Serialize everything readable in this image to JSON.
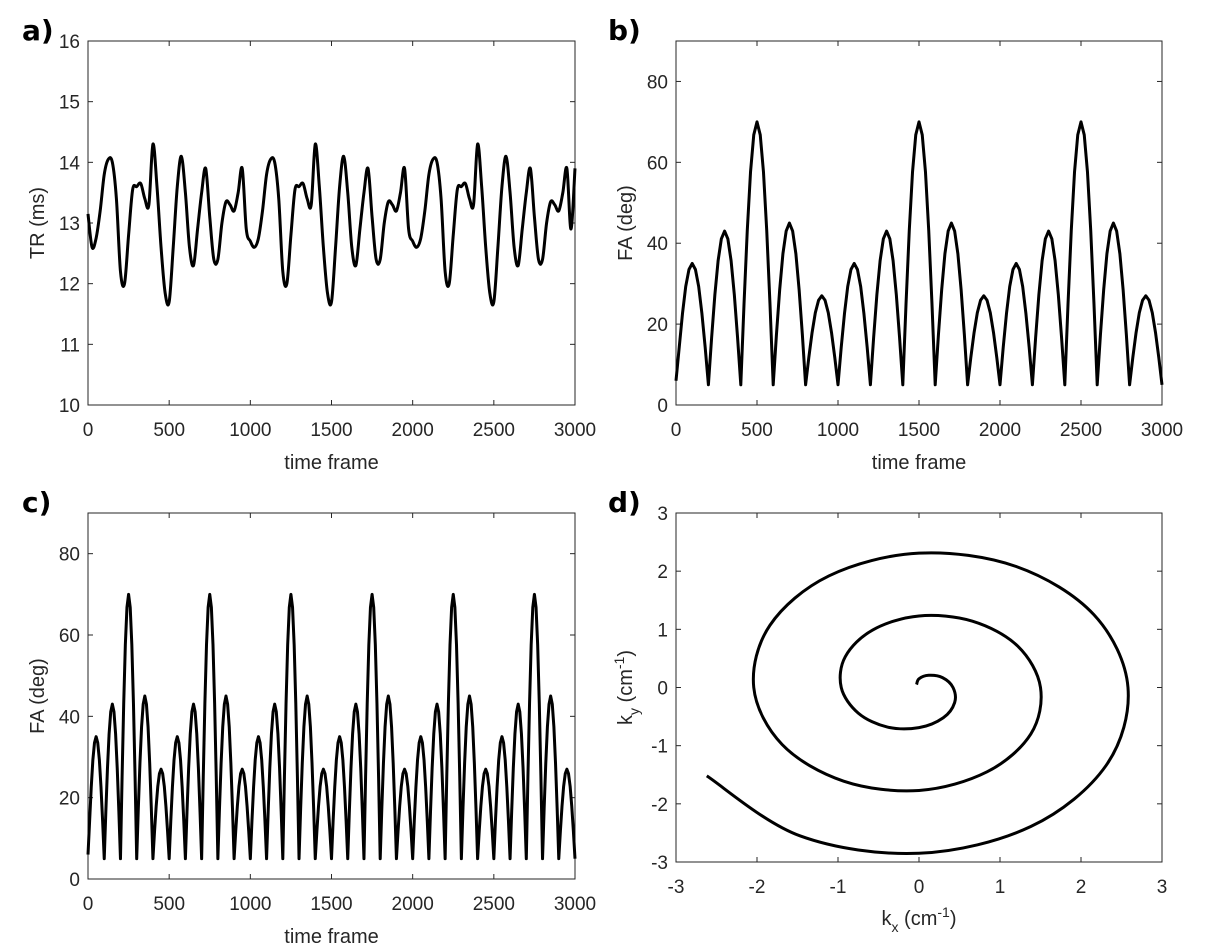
{
  "chart_data": [
    {
      "type": "line",
      "label": "a)",
      "xlabel": [
        "time frame"
      ],
      "ylabel": [
        "TR (ms)"
      ],
      "color": "#000000",
      "xlim": [
        0,
        3000
      ],
      "xticks": [
        0,
        500,
        1000,
        1500,
        2000,
        2500,
        3000
      ],
      "ylim": [
        10,
        16
      ],
      "yticks": [
        10,
        11,
        12,
        13,
        14,
        15,
        16
      ],
      "x": [
        0,
        25,
        50,
        75,
        100,
        125,
        150,
        175,
        200,
        225,
        250,
        275,
        300,
        325,
        350,
        375,
        400,
        425,
        450,
        475,
        500,
        525,
        550,
        575,
        600,
        625,
        650,
        675,
        700,
        725,
        750,
        775,
        800,
        825,
        850,
        875,
        900,
        925,
        950,
        975,
        1000,
        1025,
        1050,
        1075,
        1100,
        1125,
        1150,
        1175,
        1200,
        1225,
        1250,
        1275,
        1300,
        1325,
        1350,
        1375,
        1400,
        1425,
        1450,
        1475,
        1500,
        1525,
        1550,
        1575,
        1600,
        1625,
        1650,
        1675,
        1700,
        1725,
        1750,
        1775,
        1800,
        1825,
        1850,
        1875,
        1900,
        1925,
        1950,
        1975,
        2000,
        2025,
        2050,
        2075,
        2100,
        2125,
        2150,
        2175,
        2200,
        2225,
        2250,
        2275,
        2300,
        2325,
        2350,
        2375,
        2400,
        2425,
        2450,
        2475,
        2500,
        2525,
        2550,
        2575,
        2600,
        2625,
        2650,
        2675,
        2700,
        2725,
        2750,
        2775,
        2800,
        2825,
        2850,
        2875,
        2900,
        2925,
        2950,
        2975,
        3000
      ],
      "values": [
        13.15,
        12.6,
        12.75,
        13.2,
        13.8,
        14.05,
        14.0,
        13.4,
        12.2,
        12.0,
        12.8,
        13.55,
        13.6,
        13.65,
        13.4,
        13.3,
        14.3,
        13.6,
        12.6,
        11.85,
        11.7,
        12.6,
        13.6,
        14.1,
        13.5,
        12.6,
        12.3,
        12.9,
        13.5,
        13.9,
        13.1,
        12.4,
        12.4,
        13.0,
        13.35,
        13.3,
        13.2,
        13.5,
        13.9,
        12.9,
        12.7,
        12.6,
        12.75,
        13.2,
        13.8,
        14.05,
        14.0,
        13.4,
        12.2,
        12.0,
        12.8,
        13.55,
        13.6,
        13.65,
        13.4,
        13.3,
        14.3,
        13.6,
        12.6,
        11.85,
        11.7,
        12.6,
        13.6,
        14.1,
        13.5,
        12.6,
        12.3,
        12.9,
        13.5,
        13.9,
        13.1,
        12.4,
        12.4,
        13.0,
        13.35,
        13.3,
        13.2,
        13.5,
        13.9,
        12.9,
        12.7,
        12.6,
        12.75,
        13.2,
        13.8,
        14.05,
        14.0,
        13.4,
        12.2,
        12.0,
        12.8,
        13.55,
        13.6,
        13.65,
        13.4,
        13.3,
        14.3,
        13.6,
        12.6,
        11.85,
        11.7,
        12.6,
        13.6,
        14.1,
        13.5,
        12.6,
        12.3,
        12.9,
        13.5,
        13.9,
        13.1,
        12.4,
        12.4,
        13.0,
        13.35,
        13.3,
        13.2,
        13.5,
        13.9,
        12.9,
        13.9
      ]
    },
    {
      "type": "line",
      "label": "b)",
      "xlabel": [
        "time frame"
      ],
      "ylabel": [
        "FA (deg)"
      ],
      "color": "#000000",
      "xlim": [
        0,
        3000
      ],
      "xticks": [
        0,
        500,
        1000,
        1500,
        2000,
        2500,
        3000
      ],
      "ylim": [
        0,
        90
      ],
      "yticks": [
        0,
        20,
        40,
        60,
        80
      ],
      "x": [
        0,
        20,
        40,
        60,
        80,
        100,
        120,
        140,
        160,
        180,
        200,
        220,
        240,
        260,
        280,
        300,
        320,
        340,
        360,
        380,
        400,
        420,
        440,
        460,
        480,
        500,
        520,
        540,
        560,
        580,
        600,
        620,
        640,
        660,
        680,
        700,
        720,
        740,
        760,
        780,
        800,
        820,
        840,
        860,
        880,
        900,
        920,
        940,
        960,
        980,
        1000,
        1020,
        1040,
        1060,
        1080,
        1100,
        1120,
        1140,
        1160,
        1180,
        1200,
        1220,
        1240,
        1260,
        1280,
        1300,
        1320,
        1340,
        1360,
        1380,
        1400,
        1420,
        1440,
        1460,
        1480,
        1500,
        1520,
        1540,
        1560,
        1580,
        1600,
        1620,
        1640,
        1660,
        1680,
        1700,
        1720,
        1740,
        1760,
        1780,
        1800,
        1820,
        1840,
        1860,
        1880,
        1900,
        1920,
        1940,
        1960,
        1980,
        2000,
        2020,
        2040,
        2060,
        2080,
        2100,
        2120,
        2140,
        2160,
        2180,
        2200,
        2220,
        2240,
        2260,
        2280,
        2300,
        2320,
        2340,
        2360,
        2380,
        2400,
        2420,
        2440,
        2460,
        2480,
        2500,
        2520,
        2540,
        2560,
        2580,
        2600,
        2620,
        2640,
        2660,
        2680,
        2700,
        2720,
        2740,
        2760,
        2780,
        2800,
        2820,
        2840,
        2860,
        2880,
        2900,
        2920,
        2940,
        2960,
        2980,
        3000
      ],
      "values": [
        6,
        14.3,
        22.6,
        29.3,
        33.5,
        35,
        33.5,
        29.3,
        22.6,
        14.3,
        5,
        16.7,
        27.3,
        35.7,
        41.1,
        43,
        41.1,
        35.7,
        27.3,
        16.7,
        5,
        25.1,
        43.2,
        57.6,
        66.8,
        70,
        66.8,
        57.6,
        43.2,
        25.1,
        5,
        17.4,
        28.5,
        37.4,
        43,
        45,
        43,
        37.4,
        28.5,
        17.4,
        5,
        11.8,
        17.9,
        22.8,
        25.9,
        27,
        25.9,
        22.8,
        17.9,
        11.8,
        5,
        14.3,
        22.6,
        29.3,
        33.5,
        35,
        33.5,
        29.3,
        22.6,
        14.3,
        5,
        16.7,
        27.3,
        35.7,
        41.1,
        43,
        41.1,
        35.7,
        27.3,
        16.7,
        5,
        25.1,
        43.2,
        57.6,
        66.8,
        70,
        66.8,
        57.6,
        43.2,
        25.1,
        5,
        17.4,
        28.5,
        37.4,
        43,
        45,
        43,
        37.4,
        28.5,
        17.4,
        5,
        11.8,
        17.9,
        22.8,
        25.9,
        27,
        25.9,
        22.8,
        17.9,
        11.8,
        5,
        14.3,
        22.6,
        29.3,
        33.5,
        35,
        33.5,
        29.3,
        22.6,
        14.3,
        5,
        16.7,
        27.3,
        35.7,
        41.1,
        43,
        41.1,
        35.7,
        27.3,
        16.7,
        5,
        25.1,
        43.2,
        57.6,
        66.8,
        70,
        66.8,
        57.6,
        43.2,
        25.1,
        5,
        17.4,
        28.5,
        37.4,
        43,
        45,
        43,
        37.4,
        28.5,
        17.4,
        5,
        11.8,
        17.9,
        22.8,
        25.9,
        27,
        25.9,
        22.8,
        17.9,
        11.8,
        5
      ]
    },
    {
      "type": "line",
      "label": "c)",
      "xlabel": [
        "time frame"
      ],
      "ylabel": [
        "FA (deg)"
      ],
      "color": "#000000",
      "xlim": [
        0,
        3000
      ],
      "xticks": [
        0,
        500,
        1000,
        1500,
        2000,
        2500,
        3000
      ],
      "ylim": [
        0,
        90
      ],
      "yticks": [
        0,
        20,
        40,
        60,
        80
      ],
      "x": [
        0,
        10,
        20,
        30,
        40,
        50,
        60,
        70,
        80,
        90,
        100,
        110,
        120,
        130,
        140,
        150,
        160,
        170,
        180,
        190,
        200,
        210,
        220,
        230,
        240,
        250,
        260,
        270,
        280,
        290,
        300,
        310,
        320,
        330,
        340,
        350,
        360,
        370,
        380,
        390,
        400,
        410,
        420,
        430,
        440,
        450,
        460,
        470,
        480,
        490,
        500,
        510,
        520,
        530,
        540,
        550,
        560,
        570,
        580,
        590,
        600,
        610,
        620,
        630,
        640,
        650,
        660,
        670,
        680,
        690,
        700,
        710,
        720,
        730,
        740,
        750,
        760,
        770,
        780,
        790,
        800,
        810,
        820,
        830,
        840,
        850,
        860,
        870,
        880,
        890,
        900,
        910,
        920,
        930,
        940,
        950,
        960,
        970,
        980,
        990,
        1000,
        1010,
        1020,
        1030,
        1040,
        1050,
        1060,
        1070,
        1080,
        1090,
        1100,
        1110,
        1120,
        1130,
        1140,
        1150,
        1160,
        1170,
        1180,
        1190,
        1200,
        1210,
        1220,
        1230,
        1240,
        1250,
        1260,
        1270,
        1280,
        1290,
        1300,
        1310,
        1320,
        1330,
        1340,
        1350,
        1360,
        1370,
        1380,
        1390,
        1400,
        1410,
        1420,
        1430,
        1440,
        1450,
        1460,
        1470,
        1480,
        1490,
        1500,
        1510,
        1520,
        1530,
        1540,
        1550,
        1560,
        1570,
        1580,
        1590,
        1600,
        1610,
        1620,
        1630,
        1640,
        1650,
        1660,
        1670,
        1680,
        1690,
        1700,
        1710,
        1720,
        1730,
        1740,
        1750,
        1760,
        1770,
        1780,
        1790,
        1800,
        1810,
        1820,
        1830,
        1840,
        1850,
        1860,
        1870,
        1880,
        1890,
        1900,
        1910,
        1920,
        1930,
        1940,
        1950,
        1960,
        1970,
        1980,
        1990,
        2000,
        2010,
        2020,
        2030,
        2040,
        2050,
        2060,
        2070,
        2080,
        2090,
        2100,
        2110,
        2120,
        2130,
        2140,
        2150,
        2160,
        2170,
        2180,
        2190,
        2200,
        2210,
        2220,
        2230,
        2240,
        2250,
        2260,
        2270,
        2280,
        2290,
        2300,
        2310,
        2320,
        2330,
        2340,
        2350,
        2360,
        2370,
        2380,
        2390,
        2400,
        2410,
        2420,
        2430,
        2440,
        2450,
        2460,
        2470,
        2480,
        2490,
        2500,
        2510,
        2520,
        2530,
        2540,
        2550,
        2560,
        2570,
        2580,
        2590,
        2600,
        2610,
        2620,
        2630,
        2640,
        2650,
        2660,
        2670,
        2680,
        2690,
        2700,
        2710,
        2720,
        2730,
        2740,
        2750,
        2760,
        2770,
        2780,
        2790,
        2800,
        2810,
        2820,
        2830,
        2840,
        2850,
        2860,
        2870,
        2880,
        2890,
        2900,
        2910,
        2920,
        2930,
        2940,
        2950,
        2960,
        2970,
        2980,
        2990,
        3000
      ],
      "values": [
        6,
        14.3,
        22.6,
        29.3,
        33.5,
        35,
        33.5,
        29.3,
        22.6,
        14.3,
        5,
        16.7,
        27.3,
        35.7,
        41.1,
        43,
        41.1,
        35.7,
        27.3,
        16.7,
        5,
        25.1,
        43.2,
        57.6,
        66.8,
        70,
        66.8,
        57.6,
        43.2,
        25.1,
        5,
        17.4,
        28.5,
        37.4,
        43,
        45,
        43,
        37.4,
        28.5,
        17.4,
        5,
        11.8,
        17.9,
        22.8,
        25.9,
        27,
        25.9,
        22.8,
        17.9,
        11.8,
        5,
        14.3,
        22.6,
        29.3,
        33.5,
        35,
        33.5,
        29.3,
        22.6,
        14.3,
        5,
        16.7,
        27.3,
        35.7,
        41.1,
        43,
        41.1,
        35.7,
        27.3,
        16.7,
        5,
        25.1,
        43.2,
        57.6,
        66.8,
        70,
        66.8,
        57.6,
        43.2,
        25.1,
        5,
        17.4,
        28.5,
        37.4,
        43,
        45,
        43,
        37.4,
        28.5,
        17.4,
        5,
        11.8,
        17.9,
        22.8,
        25.9,
        27,
        25.9,
        22.8,
        17.9,
        11.8,
        5,
        14.3,
        22.6,
        29.3,
        33.5,
        35,
        33.5,
        29.3,
        22.6,
        14.3,
        5,
        16.7,
        27.3,
        35.7,
        41.1,
        43,
        41.1,
        35.7,
        27.3,
        16.7,
        5,
        25.1,
        43.2,
        57.6,
        66.8,
        70,
        66.8,
        57.6,
        43.2,
        25.1,
        5,
        17.4,
        28.5,
        37.4,
        43,
        45,
        43,
        37.4,
        28.5,
        17.4,
        5,
        11.8,
        17.9,
        22.8,
        25.9,
        27,
        25.9,
        22.8,
        17.9,
        11.8,
        5,
        14.3,
        22.6,
        29.3,
        33.5,
        35,
        33.5,
        29.3,
        22.6,
        14.3,
        5,
        16.7,
        27.3,
        35.7,
        41.1,
        43,
        41.1,
        35.7,
        27.3,
        16.7,
        5,
        25.1,
        43.2,
        57.6,
        66.8,
        70,
        66.8,
        57.6,
        43.2,
        25.1,
        5,
        17.4,
        28.5,
        37.4,
        43,
        45,
        43,
        37.4,
        28.5,
        17.4,
        5,
        11.8,
        17.9,
        22.8,
        25.9,
        27,
        25.9,
        22.8,
        17.9,
        11.8,
        5,
        14.3,
        22.6,
        29.3,
        33.5,
        35,
        33.5,
        29.3,
        22.6,
        14.3,
        5,
        16.7,
        27.3,
        35.7,
        41.1,
        43,
        41.1,
        35.7,
        27.3,
        16.7,
        5,
        25.1,
        43.2,
        57.6,
        66.8,
        70,
        66.8,
        57.6,
        43.2,
        25.1,
        5,
        17.4,
        28.5,
        37.4,
        43,
        45,
        43,
        37.4,
        28.5,
        17.4,
        5,
        11.8,
        17.9,
        22.8,
        25.9,
        27,
        25.9,
        22.8,
        17.9,
        11.8,
        5,
        14.3,
        22.6,
        29.3,
        33.5,
        35,
        33.5,
        29.3,
        22.6,
        14.3,
        5,
        16.7,
        27.3,
        35.7,
        41.1,
        43,
        41.1,
        35.7,
        27.3,
        16.7,
        5,
        25.1,
        43.2,
        57.6,
        66.8,
        70,
        66.8,
        57.6,
        43.2,
        25.1,
        5,
        17.4,
        28.5,
        37.4,
        43,
        45,
        43,
        37.4,
        28.5,
        17.4,
        5,
        11.8,
        17.9,
        22.8,
        25.9,
        27,
        25.9,
        22.8,
        17.9,
        11.8,
        5
      ]
    },
    {
      "type": "line",
      "label": "d)",
      "xlabel": [
        "k",
        "x",
        " (cm",
        "-1",
        ")"
      ],
      "ylabel": [
        "k",
        "y",
        " (cm",
        "-1",
        ")"
      ],
      "color": "#000000",
      "xlim": [
        -3,
        3
      ],
      "xticks": [
        -3,
        -2,
        -1,
        0,
        1,
        2,
        3
      ],
      "ylim": [
        -3,
        3
      ],
      "yticks": [
        -3,
        -2,
        -1,
        0,
        1,
        2,
        3
      ],
      "x": [
        -0.03,
        0,
        0.12,
        0.29,
        0.42,
        0.44,
        0.3,
        0,
        -0.39,
        -0.75,
        -0.96,
        -0.91,
        -0.57,
        0,
        0.66,
        1.22,
        1.5,
        1.38,
        0.84,
        0,
        -0.93,
        -1.69,
        -2.04,
        -1.84,
        -1.11,
        0,
        1.2,
        2.16,
        2.58,
        2.31,
        1.38,
        0,
        -1.47,
        -2.62
      ],
      "values": [
        0.05,
        0.15,
        0.21,
        0.17,
        0,
        -0.26,
        -0.52,
        -0.69,
        -0.68,
        -0.44,
        0,
        0.53,
        0.99,
        1.23,
        1.14,
        0.71,
        0,
        -0.8,
        -1.45,
        -1.77,
        -1.61,
        -0.98,
        0,
        1.07,
        1.92,
        2.31,
        2.08,
        1.25,
        0,
        -1.34,
        -2.39,
        -2.85,
        -2.55,
        -1.52
      ]
    }
  ]
}
